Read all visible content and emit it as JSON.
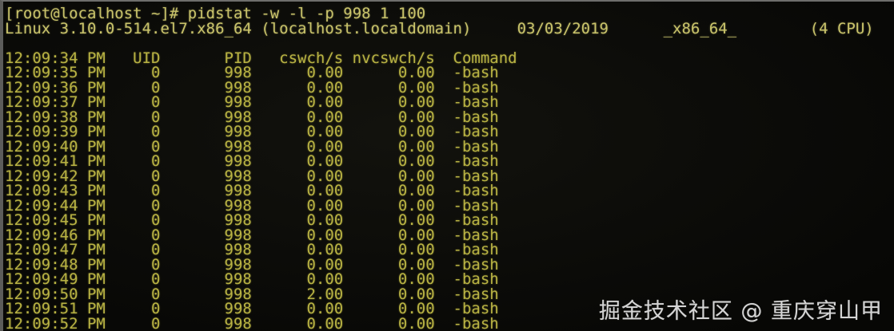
{
  "colors": {
    "terminal_text": "#b8b243",
    "bright_text": "#c9c36a",
    "background": "#0b0b08",
    "left_edge": "#5c5c5a",
    "watermark": "#d5d5d5"
  },
  "terminal": {
    "prompt": "[root@localhost ~]#",
    "command": "pidstat -w -l -p 998 1 100",
    "system": {
      "kernel": "Linux 3.10.0-514.el7.x86_64",
      "hostname": "(localhost.localdomain)",
      "date": "03/03/2019",
      "arch": "_x86_64_",
      "cpu": "(4 CPU)"
    }
  },
  "table": {
    "header": {
      "time": "12:09:34 PM",
      "uid": "UID",
      "pid": "PID",
      "cswch": "cswch/s",
      "nvcswch": "nvcswch/s",
      "command": "Command"
    },
    "rows": [
      {
        "time": "12:09:35 PM",
        "uid": "0",
        "pid": "998",
        "cswch": "0.00",
        "nvcswch": "0.00",
        "command": "-bash"
      },
      {
        "time": "12:09:36 PM",
        "uid": "0",
        "pid": "998",
        "cswch": "0.00",
        "nvcswch": "0.00",
        "command": "-bash"
      },
      {
        "time": "12:09:37 PM",
        "uid": "0",
        "pid": "998",
        "cswch": "0.00",
        "nvcswch": "0.00",
        "command": "-bash"
      },
      {
        "time": "12:09:38 PM",
        "uid": "0",
        "pid": "998",
        "cswch": "0.00",
        "nvcswch": "0.00",
        "command": "-bash"
      },
      {
        "time": "12:09:39 PM",
        "uid": "0",
        "pid": "998",
        "cswch": "0.00",
        "nvcswch": "0.00",
        "command": "-bash"
      },
      {
        "time": "12:09:40 PM",
        "uid": "0",
        "pid": "998",
        "cswch": "0.00",
        "nvcswch": "0.00",
        "command": "-bash"
      },
      {
        "time": "12:09:41 PM",
        "uid": "0",
        "pid": "998",
        "cswch": "0.00",
        "nvcswch": "0.00",
        "command": "-bash"
      },
      {
        "time": "12:09:42 PM",
        "uid": "0",
        "pid": "998",
        "cswch": "0.00",
        "nvcswch": "0.00",
        "command": "-bash"
      },
      {
        "time": "12:09:43 PM",
        "uid": "0",
        "pid": "998",
        "cswch": "0.00",
        "nvcswch": "0.00",
        "command": "-bash"
      },
      {
        "time": "12:09:44 PM",
        "uid": "0",
        "pid": "998",
        "cswch": "0.00",
        "nvcswch": "0.00",
        "command": "-bash"
      },
      {
        "time": "12:09:45 PM",
        "uid": "0",
        "pid": "998",
        "cswch": "0.00",
        "nvcswch": "0.00",
        "command": "-bash"
      },
      {
        "time": "12:09:46 PM",
        "uid": "0",
        "pid": "998",
        "cswch": "0.00",
        "nvcswch": "0.00",
        "command": "-bash"
      },
      {
        "time": "12:09:47 PM",
        "uid": "0",
        "pid": "998",
        "cswch": "0.00",
        "nvcswch": "0.00",
        "command": "-bash"
      },
      {
        "time": "12:09:48 PM",
        "uid": "0",
        "pid": "998",
        "cswch": "0.00",
        "nvcswch": "0.00",
        "command": "-bash"
      },
      {
        "time": "12:09:49 PM",
        "uid": "0",
        "pid": "998",
        "cswch": "0.00",
        "nvcswch": "0.00",
        "command": "-bash"
      },
      {
        "time": "12:09:50 PM",
        "uid": "0",
        "pid": "998",
        "cswch": "2.00",
        "nvcswch": "0.00",
        "command": "-bash"
      },
      {
        "time": "12:09:51 PM",
        "uid": "0",
        "pid": "998",
        "cswch": "0.00",
        "nvcswch": "0.00",
        "command": "-bash"
      },
      {
        "time": "12:09:52 PM",
        "uid": "0",
        "pid": "998",
        "cswch": "0.00",
        "nvcswch": "0.00",
        "command": "-bash"
      }
    ]
  },
  "watermark": "掘金技术社区 @ 重庆穿山甲"
}
